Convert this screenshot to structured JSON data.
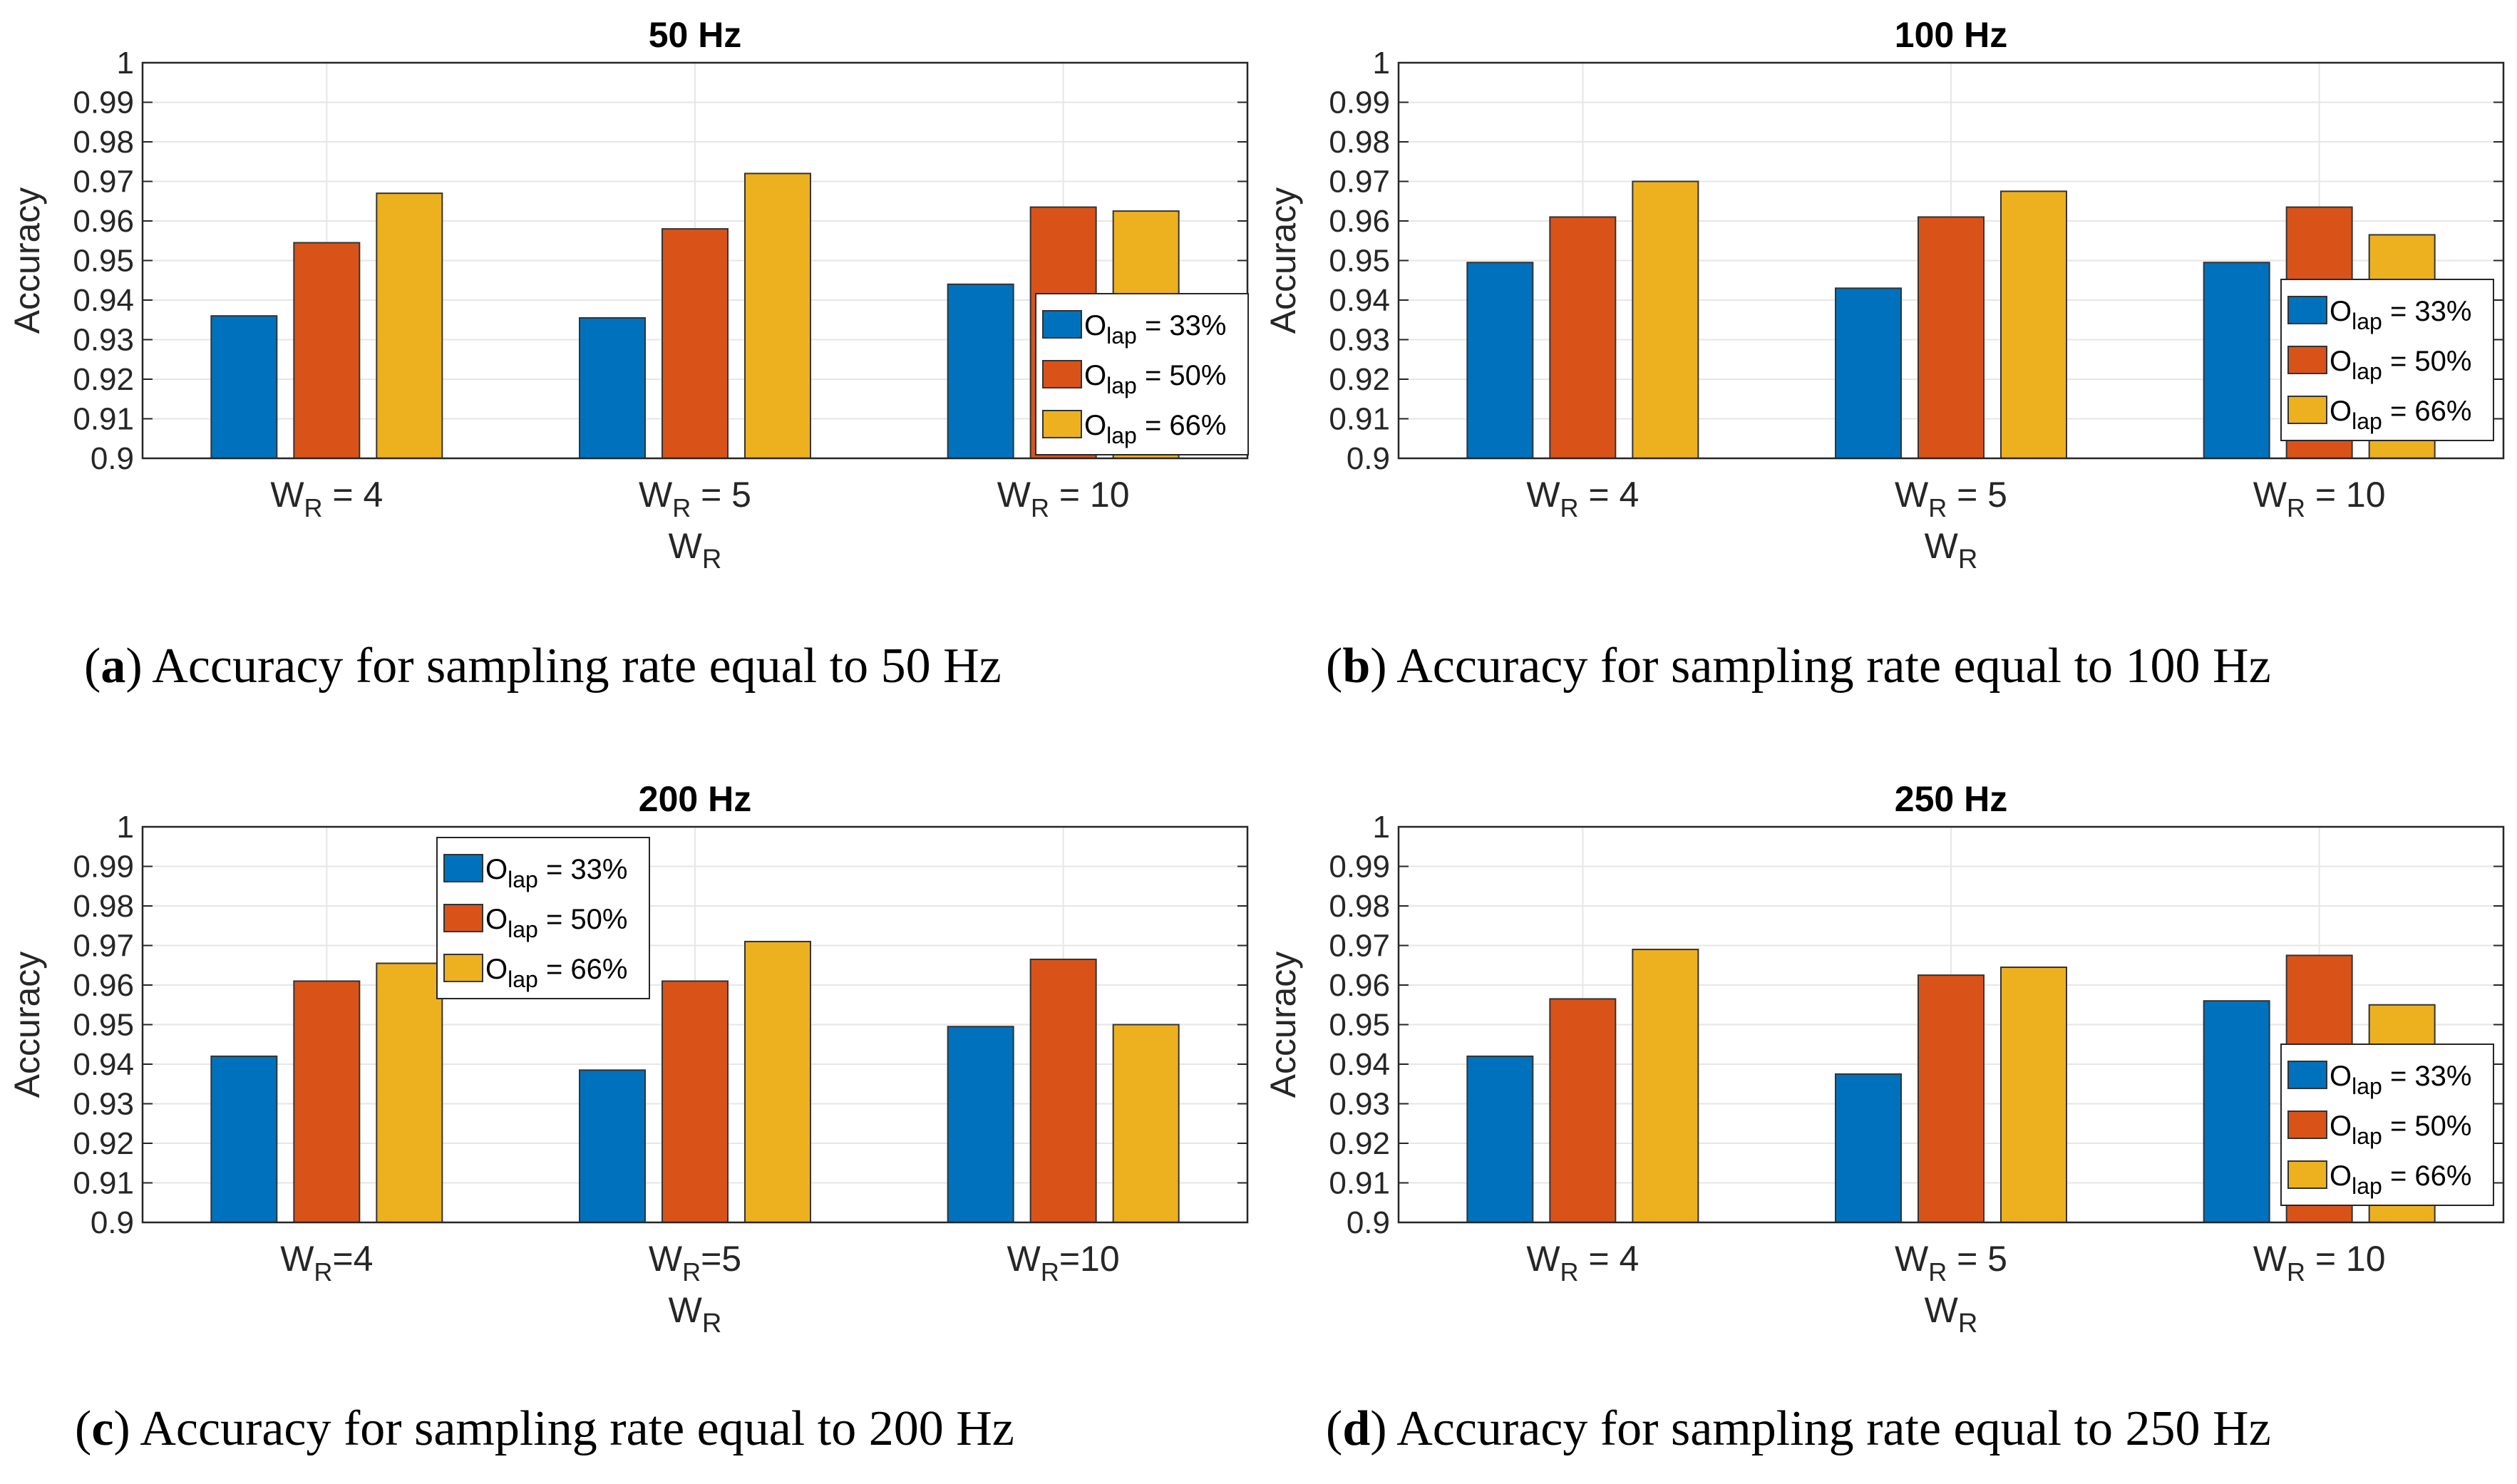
{
  "chart_data": [
    {
      "type": "bar",
      "title": "50 Hz",
      "categories": [
        "W_R = 4",
        "W_R = 5",
        "W_R = 10"
      ],
      "xlabel": "W_R",
      "ylabel": "Accuracy",
      "ylim": [
        0.9,
        1
      ],
      "yticks": [
        "0.9",
        "0.91",
        "0.92",
        "0.93",
        "0.94",
        "0.95",
        "0.96",
        "0.97",
        "0.98",
        "0.99",
        "1"
      ],
      "grid": true,
      "legend_position": "bottom-right",
      "series": [
        {
          "name": "O_lap = 33%",
          "values": [
            0.936,
            0.9355,
            0.944
          ]
        },
        {
          "name": "O_lap = 50%",
          "values": [
            0.9545,
            0.958,
            0.9635
          ]
        },
        {
          "name": "O_lap = 66%",
          "values": [
            0.967,
            0.972,
            0.9625
          ]
        }
      ]
    },
    {
      "type": "bar",
      "title": "100 Hz",
      "categories": [
        "W_R = 4",
        "W_R = 5",
        "W_R = 10"
      ],
      "xlabel": "W_R",
      "ylabel": "Accuracy",
      "ylim": [
        0.9,
        1
      ],
      "yticks": [
        "0.9",
        "0.91",
        "0.92",
        "0.93",
        "0.94",
        "0.95",
        "0.96",
        "0.97",
        "0.98",
        "0.99",
        "1"
      ],
      "grid": true,
      "legend_position": "bottom-right",
      "series": [
        {
          "name": "O_lap = 33%",
          "values": [
            0.9495,
            0.943,
            0.9495
          ]
        },
        {
          "name": "O_lap = 50%",
          "values": [
            0.961,
            0.961,
            0.9635
          ]
        },
        {
          "name": "O_lap = 66%",
          "values": [
            0.97,
            0.9675,
            0.9565
          ]
        }
      ]
    },
    {
      "type": "bar",
      "title": "200 Hz",
      "categories": [
        "W_R=4",
        "W_R=5",
        "W_R=10"
      ],
      "xlabel": "W_R",
      "ylabel": "Accuracy",
      "ylim": [
        0.9,
        1
      ],
      "yticks": [
        "0.9",
        "0.91",
        "0.92",
        "0.93",
        "0.94",
        "0.95",
        "0.96",
        "0.97",
        "0.98",
        "0.99",
        "1"
      ],
      "grid": true,
      "legend_position": "top-center",
      "series": [
        {
          "name": "O_lap = 33%",
          "values": [
            0.942,
            0.9385,
            0.9495
          ]
        },
        {
          "name": "O_lap = 50%",
          "values": [
            0.961,
            0.961,
            0.9665
          ]
        },
        {
          "name": "O_lap = 66%",
          "values": [
            0.9655,
            0.971,
            0.95
          ]
        }
      ]
    },
    {
      "type": "bar",
      "title": "250 Hz",
      "categories": [
        "W_R = 4",
        "W_R = 5",
        "W_R = 10"
      ],
      "xlabel": "W_R",
      "ylabel": "Accuracy",
      "ylim": [
        0.9,
        1
      ],
      "yticks": [
        "0.9",
        "0.91",
        "0.92",
        "0.93",
        "0.94",
        "0.95",
        "0.96",
        "0.97",
        "0.98",
        "0.99",
        "1"
      ],
      "grid": true,
      "legend_position": "bottom-right",
      "series": [
        {
          "name": "O_lap = 33%",
          "values": [
            0.942,
            0.9375,
            0.956
          ]
        },
        {
          "name": "O_lap = 50%",
          "values": [
            0.9565,
            0.9625,
            0.9675
          ]
        },
        {
          "name": "O_lap = 66%",
          "values": [
            0.969,
            0.9645,
            0.955
          ]
        }
      ]
    }
  ],
  "colors": {
    "series": [
      "#0072BD",
      "#D95319",
      "#EDB120"
    ],
    "grid": "#e6e6e6",
    "axis": "#262626"
  },
  "captions": [
    {
      "letter": "a",
      "text": "Accuracy for sampling rate equal to 50 Hz"
    },
    {
      "letter": "b",
      "text": "Accuracy for sampling rate equal to 100 Hz"
    },
    {
      "letter": "c",
      "text": "Accuracy for sampling rate equal to 200 Hz"
    },
    {
      "letter": "d",
      "text": "Accuracy for sampling rate equal to 250 Hz"
    }
  ]
}
